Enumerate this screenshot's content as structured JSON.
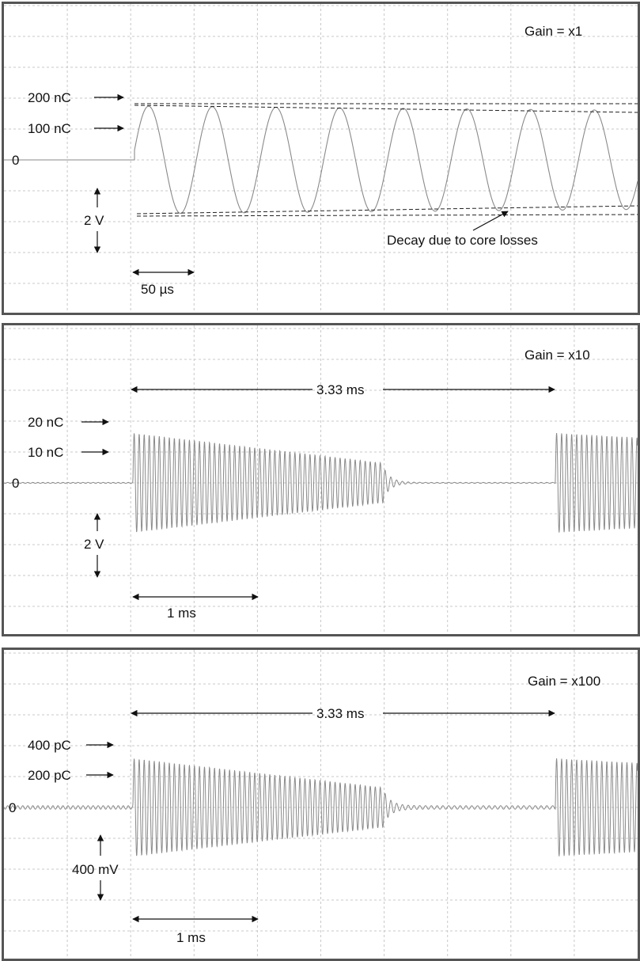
{
  "chart_data": [
    {
      "type": "line",
      "gain_label": "Gain = x1",
      "zero_label": "0",
      "level_labels": [
        "200 nC",
        "100 nC"
      ],
      "vertical_scale_label": "2 V",
      "time_scale_label": "50 µs",
      "annotation": "Decay due to core losses",
      "grid": true
    },
    {
      "type": "line",
      "gain_label": "Gain = x10",
      "zero_label": "0",
      "level_labels": [
        "20 nC",
        "10 nC"
      ],
      "vertical_scale_label": "2 V",
      "time_scale_label": "1 ms",
      "period_label": "3.33 ms",
      "grid": true
    },
    {
      "type": "line",
      "gain_label": "Gain = x100",
      "zero_label": "0",
      "level_labels": [
        "400 pC",
        "200 pC"
      ],
      "vertical_scale_label": "400 mV",
      "time_scale_label": "1 ms",
      "period_label": "3.33 ms",
      "grid": true
    }
  ]
}
